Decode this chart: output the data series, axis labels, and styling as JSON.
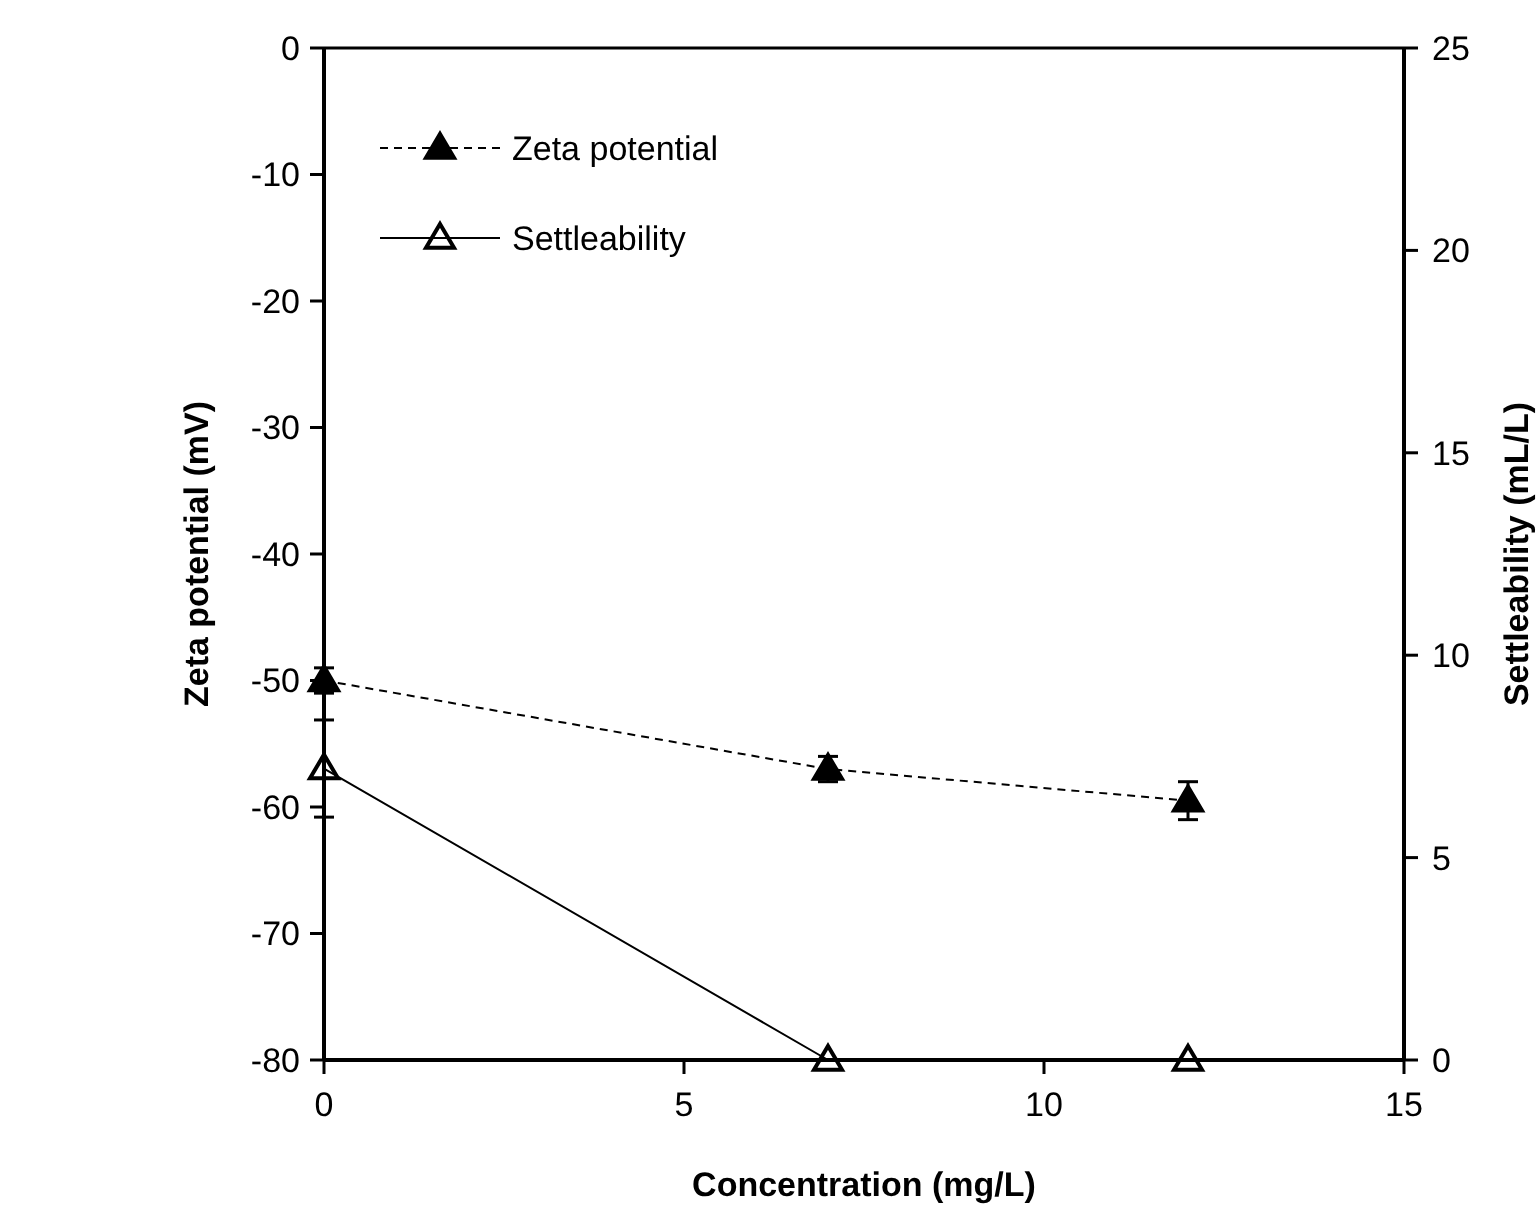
{
  "chart_data": {
    "type": "line",
    "xlabel": "Concentration (mg/L)",
    "ylabel": "Zeta potential (mV)",
    "y2label": "Settleability (mL/L)",
    "x": [
      0,
      7,
      12
    ],
    "xlim": [
      0,
      15
    ],
    "xticks": [
      0,
      5,
      10,
      15
    ],
    "ylim": [
      -80,
      0
    ],
    "yticks": [
      -80,
      -70,
      -60,
      -50,
      -40,
      -30,
      -20,
      -10,
      0
    ],
    "y2lim": [
      0,
      25
    ],
    "y2ticks": [
      0,
      5,
      10,
      15,
      20,
      25
    ],
    "legend": "top left",
    "grid": false,
    "series": [
      {
        "name": "Zeta potential",
        "color": "#000000",
        "values": [
          -50,
          -57,
          -59.5
        ],
        "errors": [
          1,
          1,
          1.5
        ],
        "line_style": "dashed",
        "marker": "triangle"
      },
      {
        "name": "Settleability",
        "color": "#000000",
        "values": [
          7.2,
          0,
          0
        ],
        "errors": [
          1.2,
          null,
          null
        ],
        "line_style": "solid",
        "marker": "triangle",
        "axis": "y2"
      }
    ]
  }
}
